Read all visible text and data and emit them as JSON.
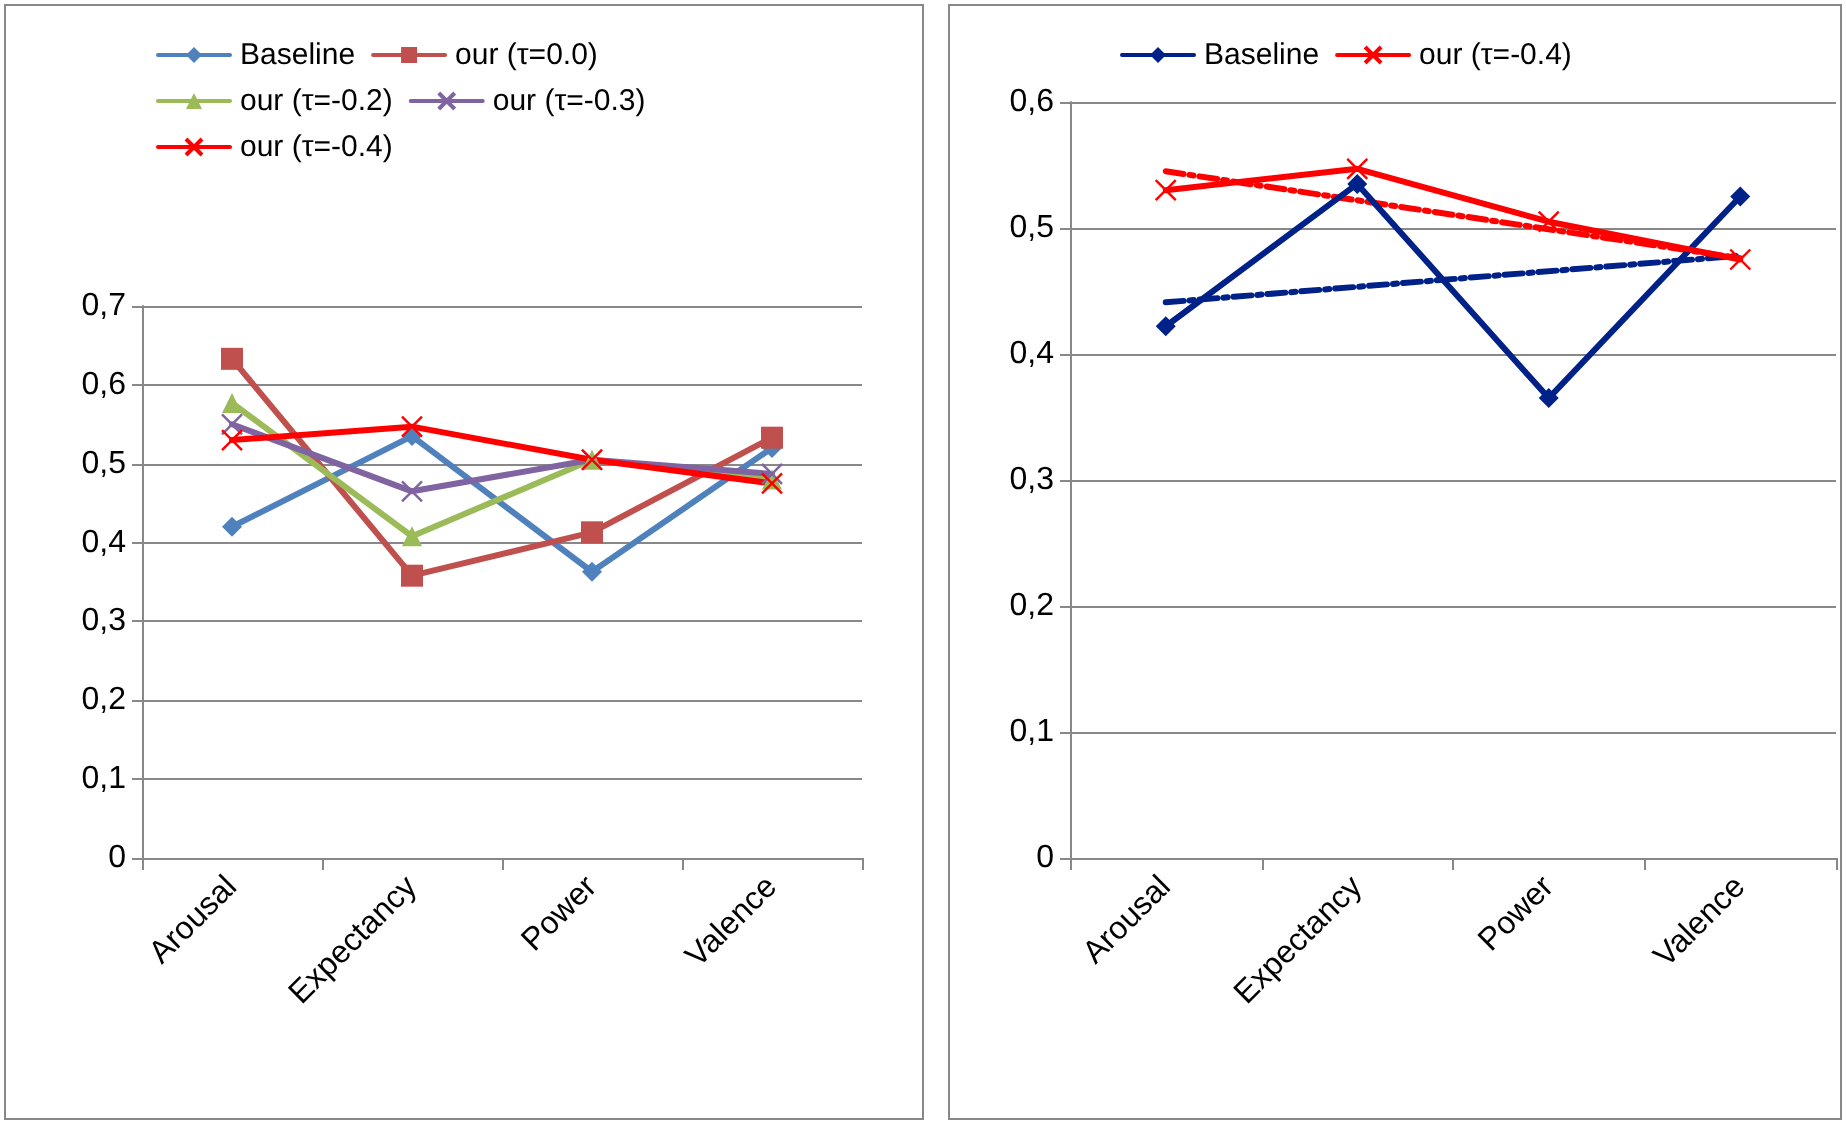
{
  "chart_data": [
    {
      "type": "line",
      "categories": [
        "Arousal",
        "Expectancy",
        "Power",
        "Valence"
      ],
      "ylim": [
        0,
        0.7
      ],
      "yticks": [
        {
          "value": 0,
          "label": "0"
        },
        {
          "value": 0.1,
          "label": "0,1"
        },
        {
          "value": 0.2,
          "label": "0,2"
        },
        {
          "value": 0.3,
          "label": "0,3"
        },
        {
          "value": 0.4,
          "label": "0,4"
        },
        {
          "value": 0.5,
          "label": "0,5"
        },
        {
          "value": 0.6,
          "label": "0,6"
        },
        {
          "value": 0.7,
          "label": "0,7"
        }
      ],
      "grid": "y",
      "legend": "top",
      "series": [
        {
          "name": "Baseline",
          "color": "#4f81bd",
          "marker": "diamond",
          "values": [
            0.42,
            0.535,
            0.363,
            0.52
          ]
        },
        {
          "name": "our (τ=0.0)",
          "color": "#c0504d",
          "marker": "square",
          "values": [
            0.633,
            0.358,
            0.413,
            0.533
          ]
        },
        {
          "name": "our (τ=-0.2)",
          "color": "#9bbb59",
          "marker": "triangle",
          "values": [
            0.577,
            0.408,
            0.505,
            0.48
          ]
        },
        {
          "name": "our (τ=-0.3)",
          "color": "#8064a2",
          "marker": "cross",
          "values": [
            0.55,
            0.465,
            0.505,
            0.487
          ]
        },
        {
          "name": "our (τ=-0.4)",
          "color": "#ff0000",
          "marker": "cross",
          "values": [
            0.53,
            0.547,
            0.505,
            0.475
          ]
        }
      ]
    },
    {
      "type": "line",
      "categories": [
        "Arousal",
        "Expectancy",
        "Power",
        "Valence"
      ],
      "ylim": [
        0,
        0.6
      ],
      "yticks": [
        {
          "value": 0,
          "label": "0"
        },
        {
          "value": 0.1,
          "label": "0,1"
        },
        {
          "value": 0.2,
          "label": "0,2"
        },
        {
          "value": 0.3,
          "label": "0,3"
        },
        {
          "value": 0.4,
          "label": "0,4"
        },
        {
          "value": 0.5,
          "label": "0,5"
        },
        {
          "value": 0.6,
          "label": "0,6"
        }
      ],
      "grid": "y",
      "legend": "top",
      "series": [
        {
          "name": "Baseline",
          "color": "#002288",
          "marker": "diamond",
          "values": [
            0.422,
            0.535,
            0.365,
            0.525
          ]
        },
        {
          "name": "our (τ=-0.4)",
          "color": "#ff0000",
          "marker": "cross",
          "values": [
            0.53,
            0.547,
            0.505,
            0.475
          ]
        },
        {
          "color": "#002288",
          "line_style": "dashed",
          "x": [
            "Arousal",
            "Valence"
          ],
          "values": [
            0.441,
            0.478
          ]
        },
        {
          "color": "#ff0000",
          "line_style": "dashed",
          "x": [
            "Arousal",
            "Valence"
          ],
          "values": [
            0.545,
            0.476
          ]
        }
      ]
    }
  ]
}
